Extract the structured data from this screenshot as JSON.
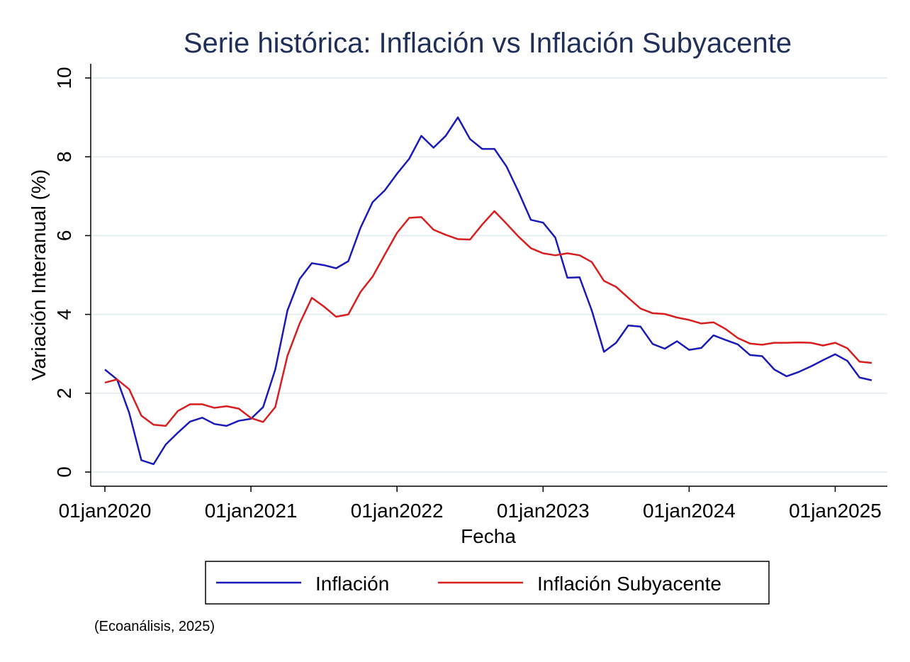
{
  "chart_data": {
    "type": "line",
    "title": "Serie histórica: Inflación vs Inflación Subyacente",
    "xlabel": "Fecha",
    "ylabel": "Variación Interanual (%)",
    "note": "(Ecoanálisis, 2025)",
    "ylim": [
      0,
      10
    ],
    "yticks": [
      0,
      2,
      4,
      6,
      8,
      10
    ],
    "xlim": [
      "2020-01",
      "2025-04"
    ],
    "xticks": [
      {
        "date": "2020-01",
        "label": "01jan2020"
      },
      {
        "date": "2021-01",
        "label": "01jan2021"
      },
      {
        "date": "2022-01",
        "label": "01jan2022"
      },
      {
        "date": "2023-01",
        "label": "01jan2023"
      },
      {
        "date": "2024-01",
        "label": "01jan2024"
      },
      {
        "date": "2025-01",
        "label": "01jan2025"
      }
    ],
    "grid": true,
    "legend_position": "bottom",
    "x": [
      "2020-01",
      "2020-02",
      "2020-03",
      "2020-04",
      "2020-05",
      "2020-06",
      "2020-07",
      "2020-08",
      "2020-09",
      "2020-10",
      "2020-11",
      "2020-12",
      "2021-01",
      "2021-02",
      "2021-03",
      "2021-04",
      "2021-05",
      "2021-06",
      "2021-07",
      "2021-08",
      "2021-09",
      "2021-10",
      "2021-11",
      "2021-12",
      "2022-01",
      "2022-02",
      "2022-03",
      "2022-04",
      "2022-05",
      "2022-06",
      "2022-07",
      "2022-08",
      "2022-09",
      "2022-10",
      "2022-11",
      "2022-12",
      "2023-01",
      "2023-02",
      "2023-03",
      "2023-04",
      "2023-05",
      "2023-06",
      "2023-07",
      "2023-08",
      "2023-09",
      "2023-10",
      "2023-11",
      "2023-12",
      "2024-01",
      "2024-02",
      "2024-03",
      "2024-04",
      "2024-05",
      "2024-06",
      "2024-07",
      "2024-08",
      "2024-09",
      "2024-10",
      "2024-11",
      "2024-12",
      "2025-01",
      "2025-02",
      "2025-03",
      "2025-04"
    ],
    "series": [
      {
        "name": "Inflación",
        "color": "#1a1ab8",
        "values": [
          2.6,
          2.35,
          1.5,
          0.3,
          0.2,
          0.7,
          1.0,
          1.28,
          1.38,
          1.22,
          1.17,
          1.3,
          1.35,
          1.65,
          2.6,
          4.1,
          4.9,
          5.3,
          5.25,
          5.17,
          5.35,
          6.2,
          6.85,
          7.15,
          7.57,
          7.95,
          8.53,
          8.23,
          8.53,
          9.0,
          8.45,
          8.2,
          8.2,
          7.75,
          7.1,
          6.4,
          6.33,
          5.95,
          4.93,
          4.94,
          4.1,
          3.05,
          3.28,
          3.72,
          3.69,
          3.25,
          3.13,
          3.32,
          3.1,
          3.15,
          3.47,
          3.35,
          3.24,
          2.97,
          2.94,
          2.6,
          2.43,
          2.54,
          2.68,
          2.84,
          2.99,
          2.82,
          2.4,
          2.33
        ]
      },
      {
        "name": "Inflación Subyacente",
        "color": "#d81e1e",
        "values": [
          2.27,
          2.35,
          2.1,
          1.43,
          1.2,
          1.17,
          1.55,
          1.72,
          1.72,
          1.63,
          1.67,
          1.61,
          1.37,
          1.27,
          1.65,
          2.95,
          3.77,
          4.42,
          4.2,
          3.94,
          4.0,
          4.57,
          4.96,
          5.52,
          6.07,
          6.45,
          6.47,
          6.15,
          6.02,
          5.91,
          5.9,
          6.28,
          6.62,
          6.3,
          5.97,
          5.68,
          5.55,
          5.5,
          5.55,
          5.5,
          5.33,
          4.85,
          4.7,
          4.42,
          4.15,
          4.03,
          4.01,
          3.92,
          3.86,
          3.77,
          3.8,
          3.63,
          3.4,
          3.26,
          3.23,
          3.28,
          3.28,
          3.29,
          3.28,
          3.21,
          3.28,
          3.14,
          2.8,
          2.77
        ]
      }
    ]
  }
}
